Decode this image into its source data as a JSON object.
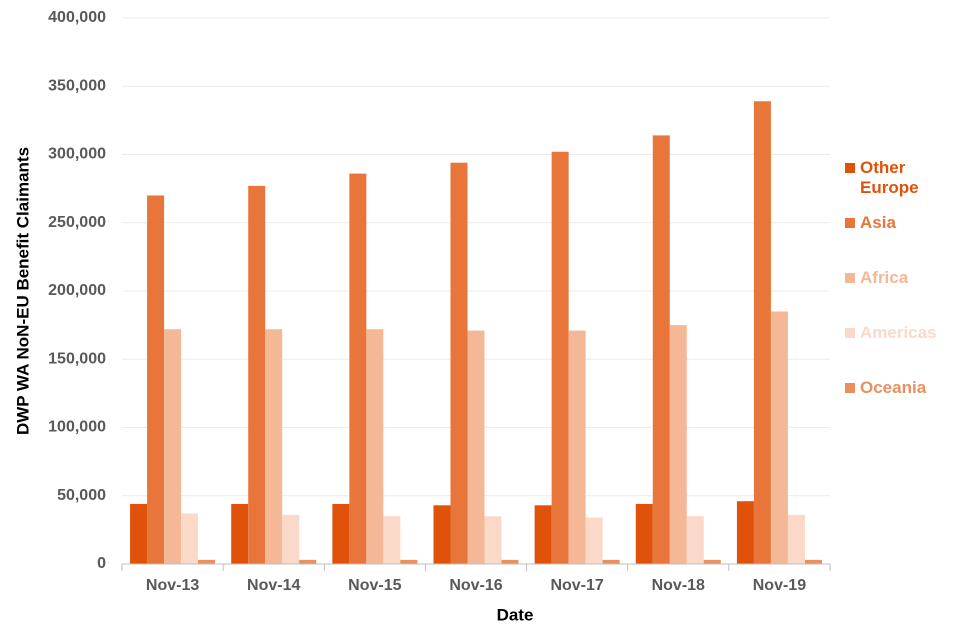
{
  "chart_data": {
    "type": "bar",
    "y_label": "DWP WA NoN-EU Benefit Claimants",
    "x_label": "Date",
    "categories": [
      "Nov-13",
      "Nov-14",
      "Nov-15",
      "Nov-16",
      "Nov-17",
      "Nov-18",
      "Nov-19"
    ],
    "series": [
      {
        "name": "Other Europe",
        "color": "#e0520a",
        "values": [
          44000,
          44000,
          44000,
          43000,
          43000,
          44000,
          46000
        ]
      },
      {
        "name": "Asia",
        "color": "#e8763a",
        "values": [
          270000,
          277000,
          286000,
          294000,
          302000,
          314000,
          339000
        ]
      },
      {
        "name": "Africa",
        "color": "#f4b896",
        "values": [
          172000,
          172000,
          172000,
          171000,
          171000,
          175000,
          185000
        ]
      },
      {
        "name": "Americas",
        "color": "#fad9c9",
        "values": [
          37000,
          36000,
          35000,
          35000,
          34000,
          35000,
          36000
        ]
      },
      {
        "name": "Oceania",
        "color": "#e8915e",
        "values": [
          3000,
          3000,
          3000,
          3000,
          3000,
          3000,
          3000
        ]
      }
    ],
    "ylim": [
      0,
      400000
    ],
    "yticks": [
      0,
      {
        "value": 50000,
        "label": "50,000"
      },
      {
        "value": 100000,
        "label": "100,000"
      },
      {
        "value": 150000,
        "label": "150,000"
      },
      {
        "value": 200000,
        "label": "200,000"
      },
      {
        "value": 250000,
        "label": "250,000"
      },
      {
        "value": 300000,
        "label": "300,000"
      },
      {
        "value": 350000,
        "label": "350,000"
      },
      {
        "value": 400000,
        "label": "400,000"
      }
    ],
    "grid": true,
    "legend": "right"
  }
}
